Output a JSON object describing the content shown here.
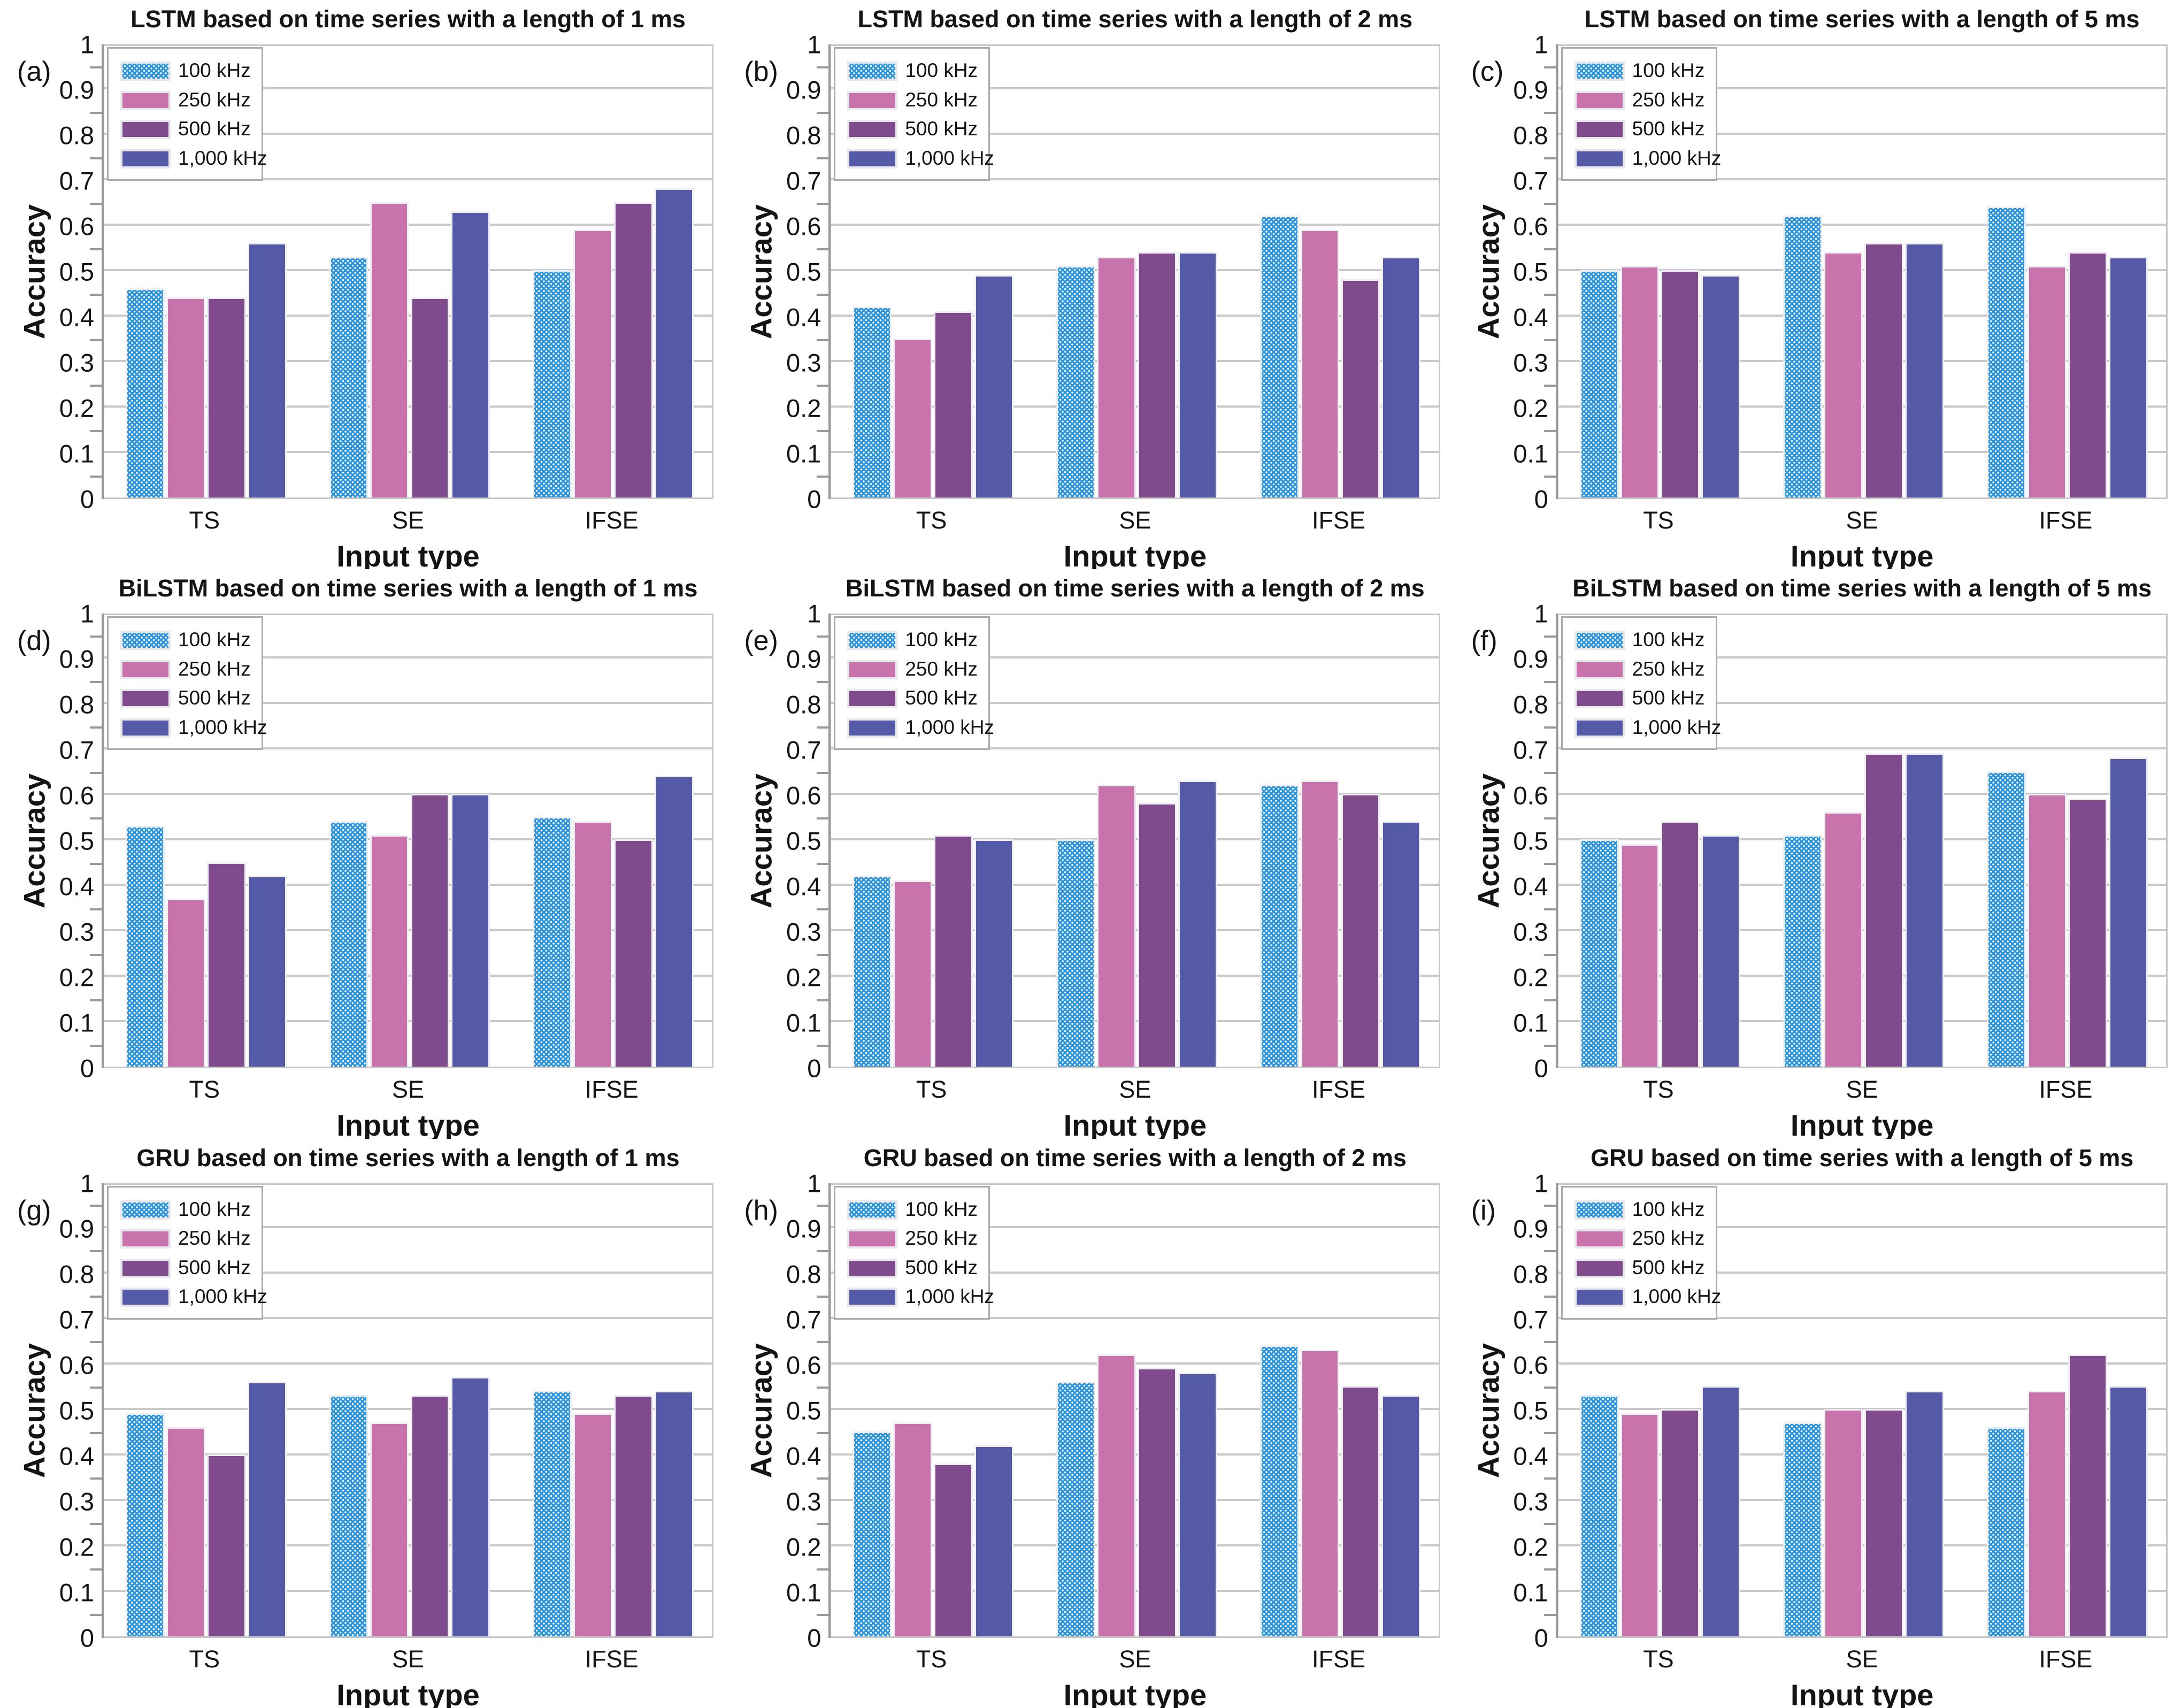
{
  "figure": {
    "background": "#ffffff",
    "series": [
      {
        "label": "100 kHz",
        "color": "#2b94db",
        "pattern": "white-dot-lattice"
      },
      {
        "label": "250 kHz",
        "color": "#c873ac",
        "pattern": "solid"
      },
      {
        "label": "500 kHz",
        "color": "#804b8c",
        "pattern": "solid"
      },
      {
        "label": "1,000 kHz",
        "color": "#555aa8",
        "pattern": "solid"
      }
    ],
    "ytick_labels": [
      "0",
      "0.1",
      "0.2",
      "0.3",
      "0.4",
      "0.5",
      "0.6",
      "0.7",
      "0.8",
      "0.9",
      "1"
    ],
    "categories": [
      "TS",
      "SE",
      "IFSE"
    ],
    "xlabel": "Input type",
    "ylabel": "Accuracy",
    "grid_color": "#c9c9c9",
    "spine_color": "#9a9a9a",
    "legend_position": "top-left-inside"
  },
  "chart_data": [
    {
      "id": "a",
      "panel_label": "(a)",
      "type": "bar",
      "title": "LSTM based on time series with a length of 1 ms",
      "xlabel": "Input type",
      "ylabel": "Accuracy",
      "ylim": [
        0,
        1
      ],
      "grid": true,
      "categories": [
        "TS",
        "SE",
        "IFSE"
      ],
      "series": [
        {
          "name": "100 kHz",
          "values": [
            0.46,
            0.53,
            0.5
          ]
        },
        {
          "name": "250 kHz",
          "values": [
            0.44,
            0.65,
            0.59
          ]
        },
        {
          "name": "500 kHz",
          "values": [
            0.44,
            0.44,
            0.65
          ]
        },
        {
          "name": "1,000 kHz",
          "values": [
            0.56,
            0.63,
            0.68
          ]
        }
      ]
    },
    {
      "id": "b",
      "panel_label": "(b)",
      "type": "bar",
      "title": "LSTM based on time series with a length of 2 ms",
      "xlabel": "Input type",
      "ylabel": "Accuracy",
      "ylim": [
        0,
        1
      ],
      "grid": true,
      "categories": [
        "TS",
        "SE",
        "IFSE"
      ],
      "series": [
        {
          "name": "100 kHz",
          "values": [
            0.42,
            0.51,
            0.62
          ]
        },
        {
          "name": "250 kHz",
          "values": [
            0.35,
            0.53,
            0.59
          ]
        },
        {
          "name": "500 kHz",
          "values": [
            0.41,
            0.54,
            0.48
          ]
        },
        {
          "name": "1,000 kHz",
          "values": [
            0.49,
            0.54,
            0.53
          ]
        }
      ]
    },
    {
      "id": "c",
      "panel_label": "(c)",
      "type": "bar",
      "title": "LSTM based on time series with a length of 5 ms",
      "xlabel": "Input type",
      "ylabel": "Accuracy",
      "ylim": [
        0,
        1
      ],
      "grid": true,
      "categories": [
        "TS",
        "SE",
        "IFSE"
      ],
      "series": [
        {
          "name": "100 kHz",
          "values": [
            0.5,
            0.62,
            0.64
          ]
        },
        {
          "name": "250 kHz",
          "values": [
            0.51,
            0.54,
            0.51
          ]
        },
        {
          "name": "500 kHz",
          "values": [
            0.5,
            0.56,
            0.54
          ]
        },
        {
          "name": "1,000 kHz",
          "values": [
            0.49,
            0.56,
            0.53
          ]
        }
      ]
    },
    {
      "id": "d",
      "panel_label": "(d)",
      "type": "bar",
      "title": "BiLSTM based on time series with a length of 1 ms",
      "xlabel": "Input type",
      "ylabel": "Accuracy",
      "ylim": [
        0,
        1
      ],
      "grid": true,
      "categories": [
        "TS",
        "SE",
        "IFSE"
      ],
      "series": [
        {
          "name": "100 kHz",
          "values": [
            0.53,
            0.54,
            0.55
          ]
        },
        {
          "name": "250 kHz",
          "values": [
            0.37,
            0.51,
            0.54
          ]
        },
        {
          "name": "500 kHz",
          "values": [
            0.45,
            0.6,
            0.5
          ]
        },
        {
          "name": "1,000 kHz",
          "values": [
            0.42,
            0.6,
            0.64
          ]
        }
      ]
    },
    {
      "id": "e",
      "panel_label": "(e)",
      "type": "bar",
      "title": "BiLSTM based on time series with a length of 2 ms",
      "xlabel": "Input type",
      "ylabel": "Accuracy",
      "ylim": [
        0,
        1
      ],
      "grid": true,
      "categories": [
        "TS",
        "SE",
        "IFSE"
      ],
      "series": [
        {
          "name": "100 kHz",
          "values": [
            0.42,
            0.5,
            0.62
          ]
        },
        {
          "name": "250 kHz",
          "values": [
            0.41,
            0.62,
            0.63
          ]
        },
        {
          "name": "500 kHz",
          "values": [
            0.51,
            0.58,
            0.6
          ]
        },
        {
          "name": "1,000 kHz",
          "values": [
            0.5,
            0.63,
            0.54
          ]
        }
      ]
    },
    {
      "id": "f",
      "panel_label": "(f)",
      "type": "bar",
      "title": "BiLSTM based on time series with a length of 5 ms",
      "xlabel": "Input type",
      "ylabel": "Accuracy",
      "ylim": [
        0,
        1
      ],
      "grid": true,
      "categories": [
        "TS",
        "SE",
        "IFSE"
      ],
      "series": [
        {
          "name": "100 kHz",
          "values": [
            0.5,
            0.51,
            0.65
          ]
        },
        {
          "name": "250 kHz",
          "values": [
            0.49,
            0.56,
            0.6
          ]
        },
        {
          "name": "500 kHz",
          "values": [
            0.54,
            0.69,
            0.59
          ]
        },
        {
          "name": "1,000 kHz",
          "values": [
            0.51,
            0.69,
            0.68
          ]
        }
      ]
    },
    {
      "id": "g",
      "panel_label": "(g)",
      "type": "bar",
      "title": "GRU based on time series with a length of 1 ms",
      "xlabel": "Input type",
      "ylabel": "Accuracy",
      "ylim": [
        0,
        1
      ],
      "grid": true,
      "categories": [
        "TS",
        "SE",
        "IFSE"
      ],
      "series": [
        {
          "name": "100 kHz",
          "values": [
            0.49,
            0.53,
            0.54
          ]
        },
        {
          "name": "250 kHz",
          "values": [
            0.46,
            0.47,
            0.49
          ]
        },
        {
          "name": "500 kHz",
          "values": [
            0.4,
            0.53,
            0.53
          ]
        },
        {
          "name": "1,000 kHz",
          "values": [
            0.56,
            0.57,
            0.54
          ]
        }
      ]
    },
    {
      "id": "h",
      "panel_label": "(h)",
      "type": "bar",
      "title": "GRU based on time series with a length of 2 ms",
      "xlabel": "Input type",
      "ylabel": "Accuracy",
      "ylim": [
        0,
        1
      ],
      "grid": true,
      "categories": [
        "TS",
        "SE",
        "IFSE"
      ],
      "series": [
        {
          "name": "100 kHz",
          "values": [
            0.45,
            0.56,
            0.64
          ]
        },
        {
          "name": "250 kHz",
          "values": [
            0.47,
            0.62,
            0.63
          ]
        },
        {
          "name": "500 kHz",
          "values": [
            0.38,
            0.59,
            0.55
          ]
        },
        {
          "name": "1,000 kHz",
          "values": [
            0.42,
            0.58,
            0.53
          ]
        }
      ]
    },
    {
      "id": "i",
      "panel_label": "(i)",
      "type": "bar",
      "title": "GRU based on time series with a length of 5 ms",
      "xlabel": "Input type",
      "ylabel": "Accuracy",
      "ylim": [
        0,
        1
      ],
      "grid": true,
      "categories": [
        "TS",
        "SE",
        "IFSE"
      ],
      "series": [
        {
          "name": "100 kHz",
          "values": [
            0.53,
            0.47,
            0.46
          ]
        },
        {
          "name": "250 kHz",
          "values": [
            0.49,
            0.5,
            0.54
          ]
        },
        {
          "name": "500 kHz",
          "values": [
            0.5,
            0.5,
            0.62
          ]
        },
        {
          "name": "1,000 kHz",
          "values": [
            0.55,
            0.54,
            0.55
          ]
        }
      ]
    }
  ]
}
